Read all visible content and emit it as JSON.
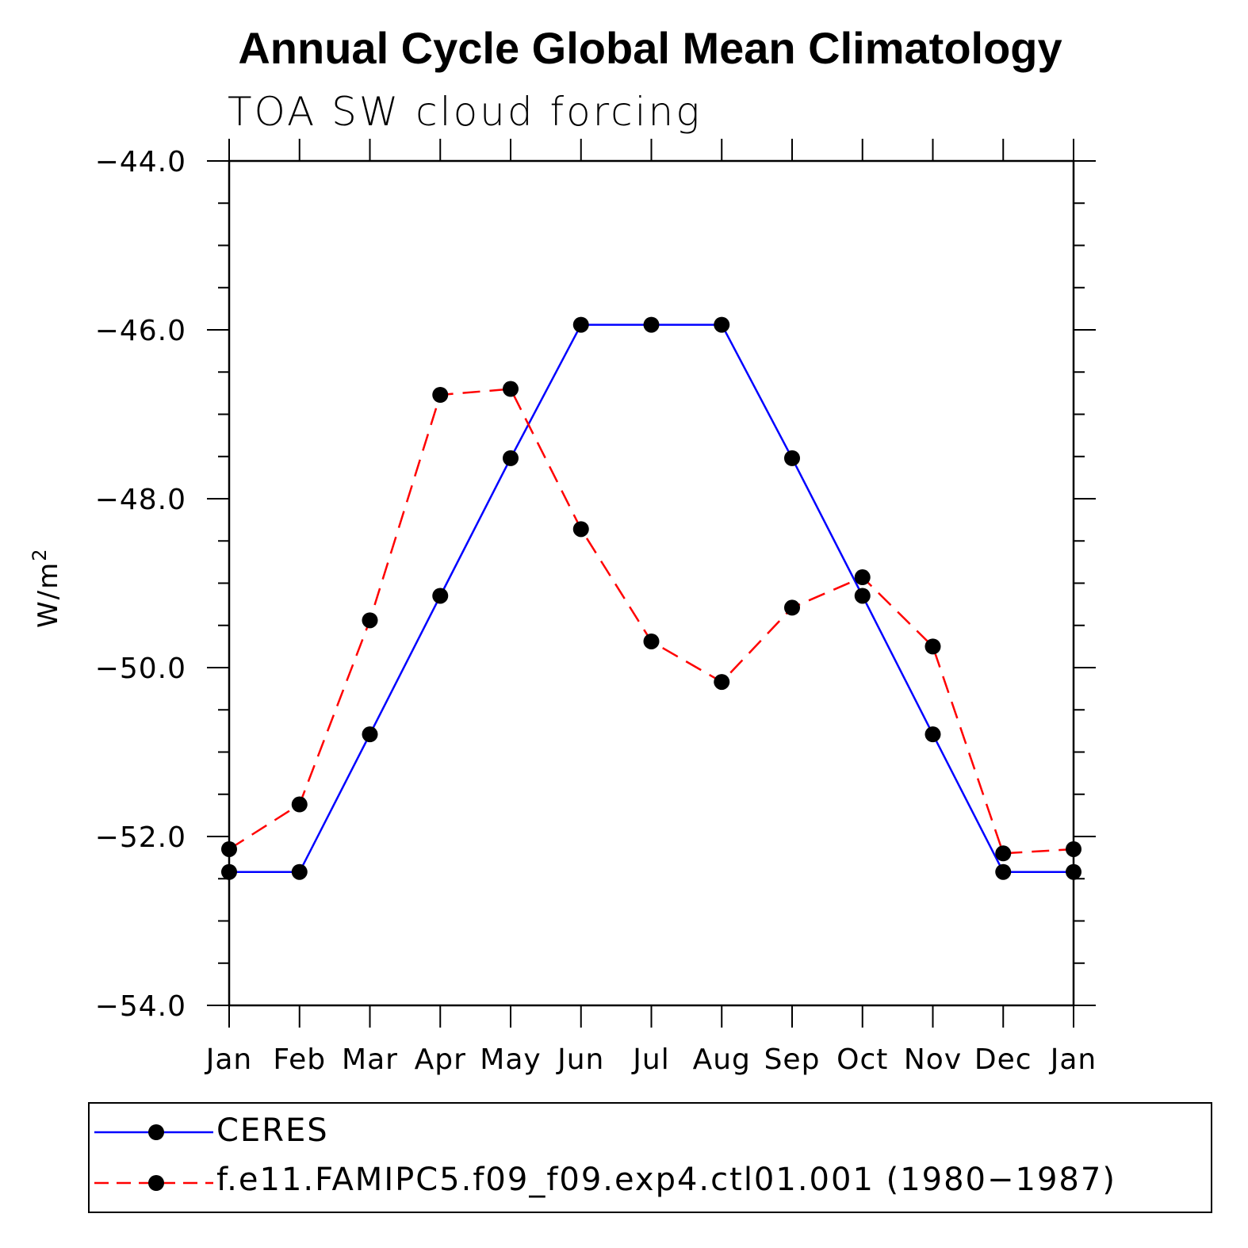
{
  "title": "Annual Cycle Global Mean Climatology",
  "subtitle": "TOA SW cloud forcing",
  "chart_data": {
    "type": "line",
    "ylabel": "W/m",
    "ylabel_sup": "2",
    "xlabel": "",
    "categories": [
      "Jan",
      "Feb",
      "Mar",
      "Apr",
      "May",
      "Jun",
      "Jul",
      "Aug",
      "Sep",
      "Oct",
      "Nov",
      "Dec",
      "Jan"
    ],
    "ylim": [
      -54.0,
      -44.0
    ],
    "yticks": [
      -44.0,
      -46.0,
      -48.0,
      -50.0,
      -52.0,
      -54.0
    ],
    "ytick_labels": [
      "−44.0",
      "−46.0",
      "−48.0",
      "−50.0",
      "−52.0",
      "−54.0"
    ],
    "grid": false,
    "legend_position": "bottom",
    "series": [
      {
        "name": "CERES",
        "color": "#0000ff",
        "line_style": "solid",
        "marker": "filled-circle",
        "values": [
          -52.42,
          -52.42,
          -50.79,
          -49.15,
          -47.52,
          -45.94,
          -45.94,
          -45.94,
          -47.52,
          -49.15,
          -50.79,
          -52.42,
          -52.42
        ]
      },
      {
        "name": "f.e11.FAMIPC5.f09_f09.exp4.ctl01.001 (1980−1987)",
        "color": "#ff0000",
        "line_style": "dashed",
        "marker": "filled-circle",
        "values": [
          -52.15,
          -51.62,
          -49.44,
          -46.77,
          -46.7,
          -48.36,
          -49.69,
          -50.17,
          -49.29,
          -48.93,
          -49.75,
          -52.2,
          -52.15
        ]
      }
    ]
  }
}
